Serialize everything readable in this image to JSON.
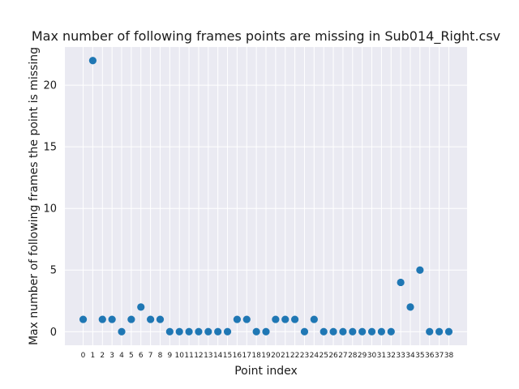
{
  "chart_data": {
    "type": "scatter",
    "title": "Max number of following frames points are missing in Sub014_Right.csv",
    "xlabel": "Point index",
    "ylabel": "Max number of following frames the point is missing",
    "x": [
      0,
      1,
      2,
      3,
      4,
      5,
      6,
      7,
      8,
      9,
      10,
      11,
      12,
      13,
      14,
      15,
      16,
      17,
      18,
      19,
      20,
      21,
      22,
      23,
      24,
      25,
      26,
      27,
      28,
      29,
      30,
      31,
      32,
      33,
      34,
      35,
      36,
      37,
      38
    ],
    "y": [
      1,
      22,
      1,
      1,
      0,
      1,
      2,
      1,
      1,
      0,
      0,
      0,
      0,
      0,
      0,
      0,
      1,
      1,
      0,
      0,
      1,
      1,
      1,
      0,
      1,
      0,
      0,
      0,
      0,
      0,
      0,
      0,
      0,
      4,
      2,
      5,
      0,
      0,
      0
    ],
    "xticks": [
      "0",
      "1",
      "2",
      "3",
      "4",
      "5",
      "6",
      "7",
      "8",
      "9",
      "10",
      "11",
      "12",
      "13",
      "14",
      "15",
      "16",
      "17",
      "18",
      "19",
      "20",
      "21",
      "22",
      "23",
      "24",
      "25",
      "26",
      "27",
      "28",
      "29",
      "30",
      "31",
      "32",
      "33",
      "34",
      "35",
      "36",
      "37",
      "38"
    ],
    "yticks": [
      "0",
      "5",
      "10",
      "15",
      "20"
    ],
    "xlim": [
      -1.9,
      39.9
    ],
    "ylim": [
      -1.1,
      23.1
    ],
    "grid": true,
    "point_color": "#1f77b4",
    "background_color": "#eaeaf2",
    "grid_color": "#ffffff"
  }
}
